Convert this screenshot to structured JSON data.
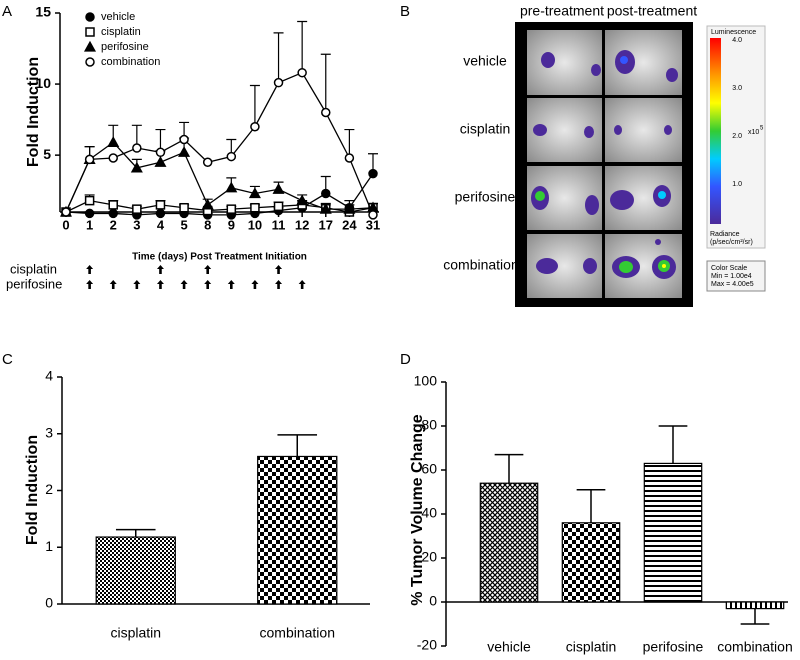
{
  "chart_data": [
    {
      "type": "line",
      "panel": "A",
      "y_label": "Fold Induction",
      "x_label": "Time (days) Post Treatment Initiation",
      "categories": [
        "0",
        "1",
        "2",
        "3",
        "4",
        "5",
        "8",
        "9",
        "10",
        "11",
        "12",
        "17",
        "24",
        "31"
      ],
      "series": [
        {
          "name": "vehicle",
          "color": "#000000",
          "marker": "filled-circle",
          "values": [
            1,
            0.9,
            0.9,
            0.8,
            0.9,
            0.9,
            0.8,
            0.8,
            0.9,
            1.1,
            1.3,
            2.3,
            1.3,
            3.7
          ],
          "errors": [
            0,
            0.1,
            0.1,
            0.1,
            0.1,
            0.1,
            0.1,
            0.1,
            0.1,
            0.2,
            0.3,
            1.2,
            0.5,
            1.4
          ]
        },
        {
          "name": "cisplatin",
          "color": "#000000",
          "marker": "open-square",
          "values": [
            1,
            1.8,
            1.5,
            1.2,
            1.5,
            1.3,
            1.1,
            1.2,
            1.3,
            1.4,
            1.5,
            1.3,
            1.0,
            1.3
          ],
          "errors": [
            0,
            0.4,
            0.3,
            0.2,
            0.3,
            0.2,
            0.2,
            0.2,
            0.2,
            0.3,
            0.3,
            0.3,
            0.2,
            0.3
          ]
        },
        {
          "name": "perifosine",
          "color": "#000000",
          "marker": "filled-triangle",
          "values": [
            1,
            4.7,
            5.9,
            4.1,
            4.5,
            5.2,
            1.5,
            2.7,
            2.3,
            2.6,
            1.8,
            1.2,
            1.2,
            1.3
          ],
          "errors": [
            0,
            0.9,
            1.2,
            0.6,
            0.8,
            1.0,
            0.4,
            0.7,
            0.5,
            0.5,
            0.4,
            0.3,
            0.3,
            0.3
          ]
        },
        {
          "name": "combination",
          "color": "#000000",
          "marker": "open-circle",
          "values": [
            1,
            4.7,
            4.8,
            5.5,
            5.2,
            6.1,
            4.5,
            4.9,
            7.0,
            10.1,
            10.8,
            8.0,
            4.8,
            0.8
          ],
          "errors": [
            0,
            0.9,
            0,
            1.6,
            1.6,
            1.2,
            0,
            1.2,
            2.9,
            3.5,
            3.6,
            4.1,
            2.0,
            0.3
          ]
        }
      ],
      "ylim": [
        1,
        15
      ],
      "yticks": [
        5,
        10,
        15
      ],
      "treatment_schedule": [
        {
          "label": "cisplatin",
          "days": [
            1,
            4,
            8,
            11
          ]
        },
        {
          "label": "perifosine",
          "days": [
            1,
            2,
            3,
            4,
            5,
            8,
            9,
            10,
            11,
            12
          ]
        }
      ]
    },
    {
      "type": "bar",
      "panel": "C",
      "y_label": "Fold Induction",
      "categories": [
        "cisplatin",
        "combination"
      ],
      "values": [
        1.18,
        2.6
      ],
      "errors": [
        0.13,
        0.38
      ],
      "ylim": [
        0,
        4
      ],
      "yticks": [
        0,
        1,
        2,
        3,
        4
      ]
    },
    {
      "type": "bar",
      "panel": "D",
      "y_label": "% Tumor Volume Change",
      "categories": [
        "vehicle",
        "cisplatin",
        "perifosine",
        "combination"
      ],
      "values": [
        54,
        36,
        63,
        -3
      ],
      "errors": [
        13,
        15,
        17,
        7
      ],
      "ylim": [
        -20,
        100
      ],
      "yticks": [
        -20,
        0,
        20,
        40,
        60,
        80,
        100
      ]
    }
  ],
  "imaging_panel": {
    "panel": "B",
    "columns": [
      "pre-treatment",
      "post-treatment"
    ],
    "rows": [
      "vehicle",
      "cisplatin",
      "perifosine",
      "combination"
    ],
    "colorbar_title": "Luminescence",
    "colorbar_ticks": [
      "4.0",
      "3.0",
      "2.0",
      "1.0"
    ],
    "colorbar_unit": "x10",
    "colorbar_exponent": "5",
    "radiance_label": "Radiance",
    "radiance_unit": "(p/sec/cm²/sr)",
    "color_scale": "Color Scale",
    "color_min": "Min = 1.00e4",
    "color_max": "Max = 4.00e5"
  }
}
